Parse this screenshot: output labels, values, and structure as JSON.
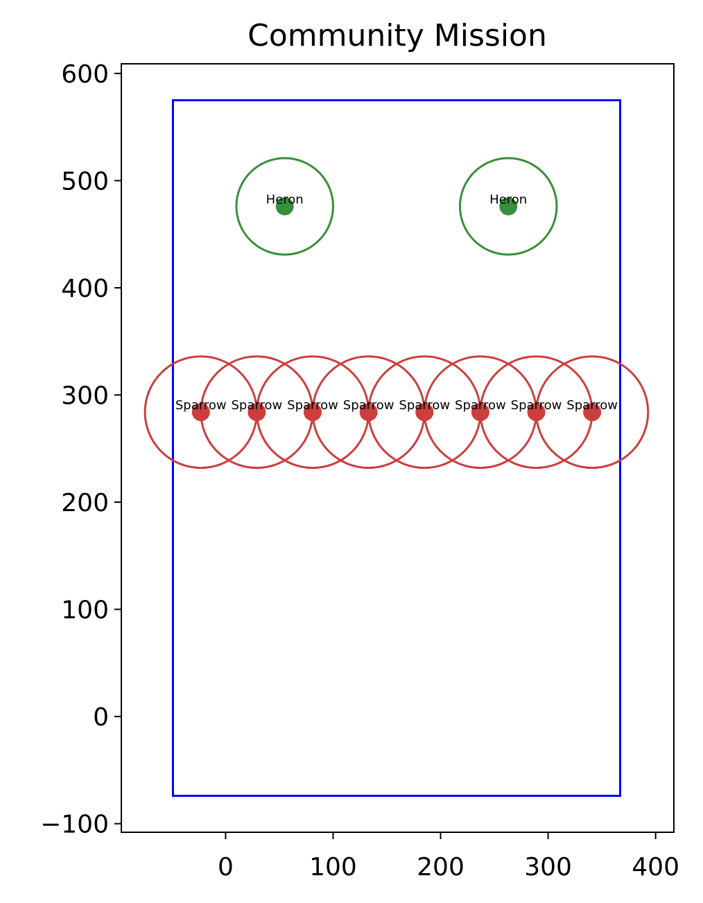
{
  "chart_data": {
    "type": "scatter",
    "title": "Community Mission",
    "xlabel": "",
    "ylabel": "",
    "xlim": [
      -97,
      417
    ],
    "ylim": [
      -108,
      609
    ],
    "x_ticks": [
      0,
      100,
      200,
      300,
      400
    ],
    "y_ticks": [
      -100,
      0,
      100,
      200,
      300,
      400,
      500,
      600
    ],
    "x_tick_labels": [
      "0",
      "100",
      "200",
      "300",
      "400"
    ],
    "y_tick_labels": [
      "−100",
      "0",
      "100",
      "200",
      "300",
      "400",
      "500",
      "600"
    ],
    "grid": false,
    "boundary": {
      "x": [
        -49,
        367
      ],
      "y": [
        -74,
        575
      ],
      "color": "#0000ff"
    },
    "series": [
      {
        "name": "Heron",
        "color": "#388e3c",
        "radius": 45,
        "points": [
          {
            "x": 55,
            "y": 476,
            "label": "Heron"
          },
          {
            "x": 263,
            "y": 476,
            "label": "Heron"
          }
        ]
      },
      {
        "name": "Sparrow",
        "color": "#cc3e3e",
        "radius": 52,
        "points": [
          {
            "x": -23,
            "y": 284,
            "label": "Sparrow"
          },
          {
            "x": 29,
            "y": 284,
            "label": "Sparrow"
          },
          {
            "x": 81,
            "y": 284,
            "label": "Sparrow"
          },
          {
            "x": 133,
            "y": 284,
            "label": "Sparrow"
          },
          {
            "x": 185,
            "y": 284,
            "label": "Sparrow"
          },
          {
            "x": 237,
            "y": 284,
            "label": "Sparrow"
          },
          {
            "x": 289,
            "y": 284,
            "label": "Sparrow"
          },
          {
            "x": 341,
            "y": 284,
            "label": "Sparrow"
          }
        ]
      }
    ]
  }
}
